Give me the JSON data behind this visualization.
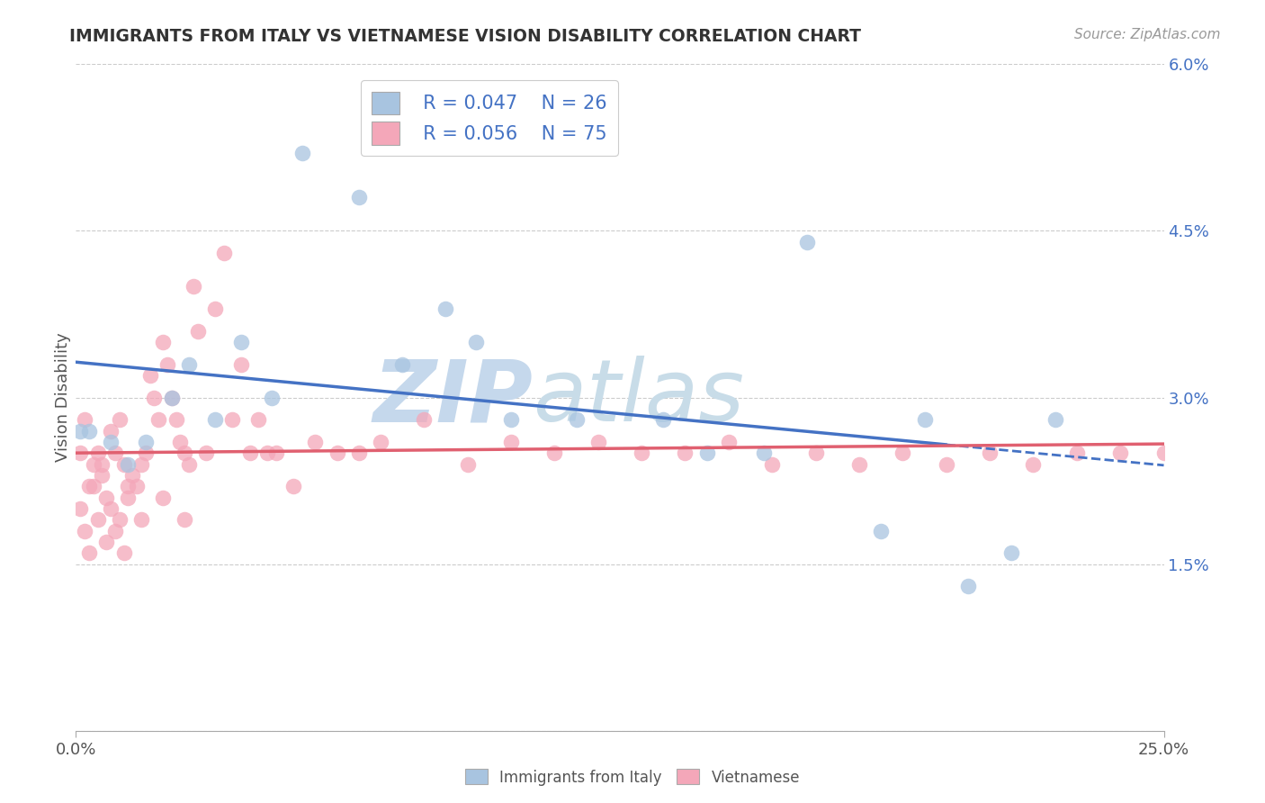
{
  "title": "IMMIGRANTS FROM ITALY VS VIETNAMESE VISION DISABILITY CORRELATION CHART",
  "source_text": "Source: ZipAtlas.com",
  "ylabel": "Vision Disability",
  "xmin": 0.0,
  "xmax": 0.25,
  "ymin": 0.0,
  "ymax": 0.06,
  "x_ticks": [
    0.0,
    0.25
  ],
  "x_tick_labels": [
    "0.0%",
    "25.0%"
  ],
  "y_ticks": [
    0.0,
    0.015,
    0.03,
    0.045,
    0.06
  ],
  "y_tick_labels": [
    "",
    "1.5%",
    "3.0%",
    "4.5%",
    "6.0%"
  ],
  "legend_italy_label": "Immigrants from Italy",
  "legend_viet_label": "Vietnamese",
  "italy_R": "R = 0.047",
  "italy_N": "N = 26",
  "viet_R": "R = 0.056",
  "viet_N": "N = 75",
  "italy_color": "#a8c4e0",
  "italy_line_color": "#4472c4",
  "viet_color": "#f4a7b9",
  "viet_line_color": "#e06070",
  "grid_color": "#cccccc",
  "italy_x": [
    0.001,
    0.003,
    0.008,
    0.012,
    0.016,
    0.022,
    0.026,
    0.032,
    0.038,
    0.045,
    0.052,
    0.065,
    0.075,
    0.085,
    0.092,
    0.1,
    0.115,
    0.135,
    0.145,
    0.158,
    0.168,
    0.185,
    0.195,
    0.205,
    0.215,
    0.225
  ],
  "italy_y": [
    0.027,
    0.027,
    0.026,
    0.024,
    0.026,
    0.03,
    0.033,
    0.028,
    0.035,
    0.03,
    0.052,
    0.048,
    0.033,
    0.038,
    0.035,
    0.028,
    0.028,
    0.028,
    0.025,
    0.025,
    0.044,
    0.018,
    0.028,
    0.013,
    0.016,
    0.028
  ],
  "viet_x": [
    0.001,
    0.002,
    0.003,
    0.004,
    0.005,
    0.006,
    0.007,
    0.008,
    0.009,
    0.01,
    0.011,
    0.012,
    0.013,
    0.014,
    0.015,
    0.016,
    0.017,
    0.018,
    0.019,
    0.02,
    0.021,
    0.022,
    0.023,
    0.024,
    0.025,
    0.026,
    0.027,
    0.028,
    0.03,
    0.032,
    0.034,
    0.036,
    0.038,
    0.04,
    0.042,
    0.044,
    0.046,
    0.05,
    0.055,
    0.06,
    0.065,
    0.07,
    0.08,
    0.09,
    0.1,
    0.11,
    0.12,
    0.13,
    0.14,
    0.15,
    0.16,
    0.17,
    0.18,
    0.19,
    0.2,
    0.21,
    0.22,
    0.23,
    0.24,
    0.25,
    0.001,
    0.002,
    0.003,
    0.004,
    0.005,
    0.006,
    0.007,
    0.008,
    0.009,
    0.01,
    0.011,
    0.012,
    0.015,
    0.02,
    0.025
  ],
  "viet_y": [
    0.025,
    0.028,
    0.022,
    0.024,
    0.025,
    0.023,
    0.021,
    0.027,
    0.025,
    0.028,
    0.024,
    0.022,
    0.023,
    0.022,
    0.024,
    0.025,
    0.032,
    0.03,
    0.028,
    0.035,
    0.033,
    0.03,
    0.028,
    0.026,
    0.025,
    0.024,
    0.04,
    0.036,
    0.025,
    0.038,
    0.043,
    0.028,
    0.033,
    0.025,
    0.028,
    0.025,
    0.025,
    0.022,
    0.026,
    0.025,
    0.025,
    0.026,
    0.028,
    0.024,
    0.026,
    0.025,
    0.026,
    0.025,
    0.025,
    0.026,
    0.024,
    0.025,
    0.024,
    0.025,
    0.024,
    0.025,
    0.024,
    0.025,
    0.025,
    0.025,
    0.02,
    0.018,
    0.016,
    0.022,
    0.019,
    0.024,
    0.017,
    0.02,
    0.018,
    0.019,
    0.016,
    0.021,
    0.019,
    0.021,
    0.019
  ]
}
